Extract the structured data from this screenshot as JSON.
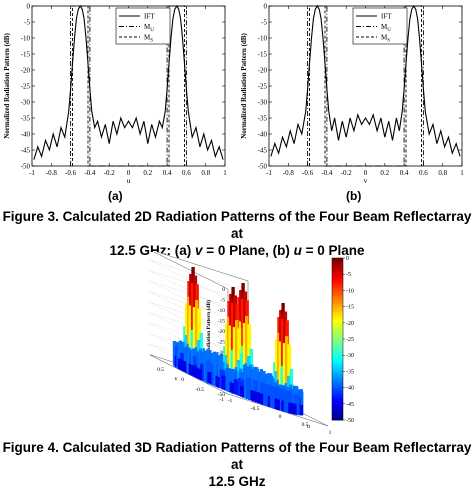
{
  "fig3": {
    "caption_line1": "Figure 3. Calculated 2D Radiation Patterns of the Four Beam Reflectarray at",
    "caption_line2_pre": "12.5 GHz: (a) ",
    "caption_v": "v",
    "caption_mid": " = 0 Plane, (b) ",
    "caption_u": "u",
    "caption_end": " = 0 Plane",
    "panel_a_label": "(a)",
    "panel_b_label": "(b)"
  },
  "fig4": {
    "caption_line1": "Figure 4. Calculated 3D Radiation Patterns of the Four Beam Reflectarray at",
    "caption_line2": "12.5 GHz"
  },
  "chart_data": [
    {
      "type": "line",
      "panel": "(a)",
      "xlabel": "u",
      "ylabel": "Normalized Radiation Pattern (dB)",
      "xlim": [
        -1,
        1
      ],
      "ylim": [
        -50,
        0
      ],
      "x_ticks": [
        "-1",
        "-0.8",
        "-0.6",
        "-0.4",
        "-0.2",
        "0",
        "0.2",
        "0.4",
        "0.6",
        "0.8",
        "1"
      ],
      "y_ticks": [
        "0",
        "-5",
        "-10",
        "-15",
        "-20",
        "-25",
        "-30",
        "-35",
        "-40",
        "-45",
        "-50"
      ],
      "legend": [
        "IFT",
        "M",
        "M"
      ],
      "legend_subscripts": [
        "",
        "U",
        "S"
      ],
      "legend_position": "top-right",
      "grid": false,
      "series": [
        {
          "name": "IFT",
          "style": "solid",
          "x": [
            -0.98,
            -0.94,
            -0.9,
            -0.86,
            -0.82,
            -0.78,
            -0.74,
            -0.7,
            -0.66,
            -0.62,
            -0.6,
            -0.58,
            -0.56,
            -0.54,
            -0.52,
            -0.5,
            -0.48,
            -0.46,
            -0.44,
            -0.42,
            -0.4,
            -0.38,
            -0.35,
            -0.32,
            -0.28,
            -0.24,
            -0.2,
            -0.16,
            -0.12,
            -0.08,
            -0.04,
            0,
            0.04,
            0.08,
            0.12,
            0.16,
            0.2,
            0.24,
            0.28,
            0.32,
            0.35,
            0.38,
            0.4,
            0.42,
            0.44,
            0.46,
            0.48,
            0.5,
            0.52,
            0.54,
            0.56,
            0.58,
            0.6,
            0.62,
            0.66,
            0.7,
            0.74,
            0.78,
            0.82,
            0.86,
            0.9,
            0.94,
            0.98
          ],
          "y": [
            -48,
            -44,
            -47,
            -42,
            -45,
            -40,
            -44,
            -38,
            -41,
            -33,
            -26,
            -18,
            -10,
            -4,
            -1,
            0,
            -1,
            -4,
            -10,
            -18,
            -26,
            -33,
            -38,
            -36,
            -41,
            -37,
            -43,
            -36,
            -40,
            -35,
            -38,
            -36,
            -38,
            -35,
            -40,
            -36,
            -43,
            -37,
            -41,
            -36,
            -38,
            -33,
            -26,
            -18,
            -10,
            -4,
            -1,
            0,
            -1,
            -4,
            -10,
            -18,
            -26,
            -33,
            -41,
            -38,
            -44,
            -40,
            -45,
            -42,
            -47,
            -44,
            -48
          ]
        },
        {
          "name": "M_U",
          "style": "dash-dot",
          "x": [
            -0.6,
            -0.6,
            -0.4,
            -0.4,
            0.4,
            0.4,
            0.6,
            0.6
          ],
          "y": [
            -50,
            0,
            0,
            -50,
            -50,
            0,
            0,
            -50
          ]
        },
        {
          "name": "M_S",
          "style": "dashed",
          "x": [
            -0.58,
            -0.58,
            -0.42,
            -0.42,
            0.42,
            0.42,
            0.58,
            0.58
          ],
          "y": [
            -50,
            0,
            0,
            -50,
            -50,
            0,
            0,
            -50
          ]
        }
      ]
    },
    {
      "type": "line",
      "panel": "(b)",
      "xlabel": "v",
      "ylabel": "Normalized Radiation Pattern (dB)",
      "xlim": [
        -1,
        1
      ],
      "ylim": [
        -50,
        0
      ],
      "x_ticks": [
        "-1",
        "-0.8",
        "-0.6",
        "-0.4",
        "-0.2",
        "0",
        "0.2",
        "0.4",
        "0.6",
        "0.8",
        "1"
      ],
      "y_ticks": [
        "0",
        "-5",
        "-10",
        "-15",
        "-20",
        "-25",
        "-30",
        "-35",
        "-40",
        "-45",
        "-50"
      ],
      "legend": [
        "IFT",
        "M",
        "M"
      ],
      "legend_subscripts": [
        "",
        "U",
        "S"
      ],
      "legend_position": "top-right",
      "grid": false,
      "series": [
        {
          "name": "IFT",
          "style": "solid",
          "x": [
            -0.98,
            -0.94,
            -0.9,
            -0.86,
            -0.82,
            -0.78,
            -0.74,
            -0.7,
            -0.66,
            -0.62,
            -0.6,
            -0.58,
            -0.56,
            -0.54,
            -0.52,
            -0.5,
            -0.48,
            -0.46,
            -0.44,
            -0.42,
            -0.4,
            -0.38,
            -0.35,
            -0.32,
            -0.28,
            -0.24,
            -0.2,
            -0.16,
            -0.12,
            -0.08,
            -0.04,
            0,
            0.04,
            0.08,
            0.12,
            0.16,
            0.2,
            0.24,
            0.28,
            0.32,
            0.35,
            0.38,
            0.4,
            0.42,
            0.44,
            0.46,
            0.48,
            0.5,
            0.52,
            0.54,
            0.56,
            0.58,
            0.6,
            0.62,
            0.66,
            0.7,
            0.74,
            0.78,
            0.82,
            0.86,
            0.9,
            0.94,
            0.98
          ],
          "y": [
            -47,
            -43,
            -46,
            -41,
            -44,
            -39,
            -43,
            -37,
            -40,
            -33,
            -26,
            -18,
            -10,
            -4,
            -1,
            0,
            -1,
            -4,
            -10,
            -18,
            -26,
            -33,
            -39,
            -35,
            -42,
            -36,
            -41,
            -35,
            -39,
            -34,
            -37,
            -35,
            -37,
            -34,
            -39,
            -35,
            -41,
            -36,
            -42,
            -35,
            -39,
            -33,
            -26,
            -18,
            -10,
            -4,
            -1,
            0,
            -1,
            -4,
            -10,
            -18,
            -26,
            -33,
            -40,
            -37,
            -43,
            -39,
            -44,
            -41,
            -46,
            -43,
            -47
          ]
        },
        {
          "name": "M_U",
          "style": "dash-dot",
          "x": [
            -0.6,
            -0.6,
            -0.4,
            -0.4,
            0.4,
            0.4,
            0.6,
            0.6
          ],
          "y": [
            -50,
            0,
            0,
            -50,
            -50,
            0,
            0,
            -50
          ]
        },
        {
          "name": "M_S",
          "style": "dashed",
          "x": [
            -0.58,
            -0.58,
            -0.42,
            -0.42,
            0.42,
            0.42,
            0.58,
            0.58
          ],
          "y": [
            -50,
            0,
            0,
            -50,
            -50,
            0,
            0,
            -50
          ]
        }
      ]
    },
    {
      "type": "heatmap",
      "panel": "3D surface",
      "xlabel": "u",
      "ylabel": "v",
      "zlabel": "Normalized Radiation Pattern (dB)",
      "zlim": [
        -50,
        0
      ],
      "z_ticks": [
        "0",
        "-5",
        "-10",
        "-15",
        "-20",
        "-25",
        "-30",
        "-35",
        "-40",
        "-45",
        "-50"
      ],
      "u_ticks": [
        "-1",
        "-0.5",
        "0",
        "0.5",
        "1"
      ],
      "v_ticks": [
        "-1",
        "-0.5",
        "0",
        "0.5",
        "1"
      ],
      "colorbar_ticks": [
        "0",
        "-5",
        "-10",
        "-15",
        "-20",
        "-25",
        "-30",
        "-35",
        "-40",
        "-45",
        "-50"
      ],
      "colormap": "jet",
      "beams": [
        {
          "u": -0.5,
          "v": 0.5,
          "peak_db": 0
        },
        {
          "u": 0.5,
          "v": 0.5,
          "peak_db": 0
        },
        {
          "u": -0.5,
          "v": -0.5,
          "peak_db": 0
        },
        {
          "u": 0.5,
          "v": -0.5,
          "peak_db": 0
        }
      ]
    }
  ]
}
